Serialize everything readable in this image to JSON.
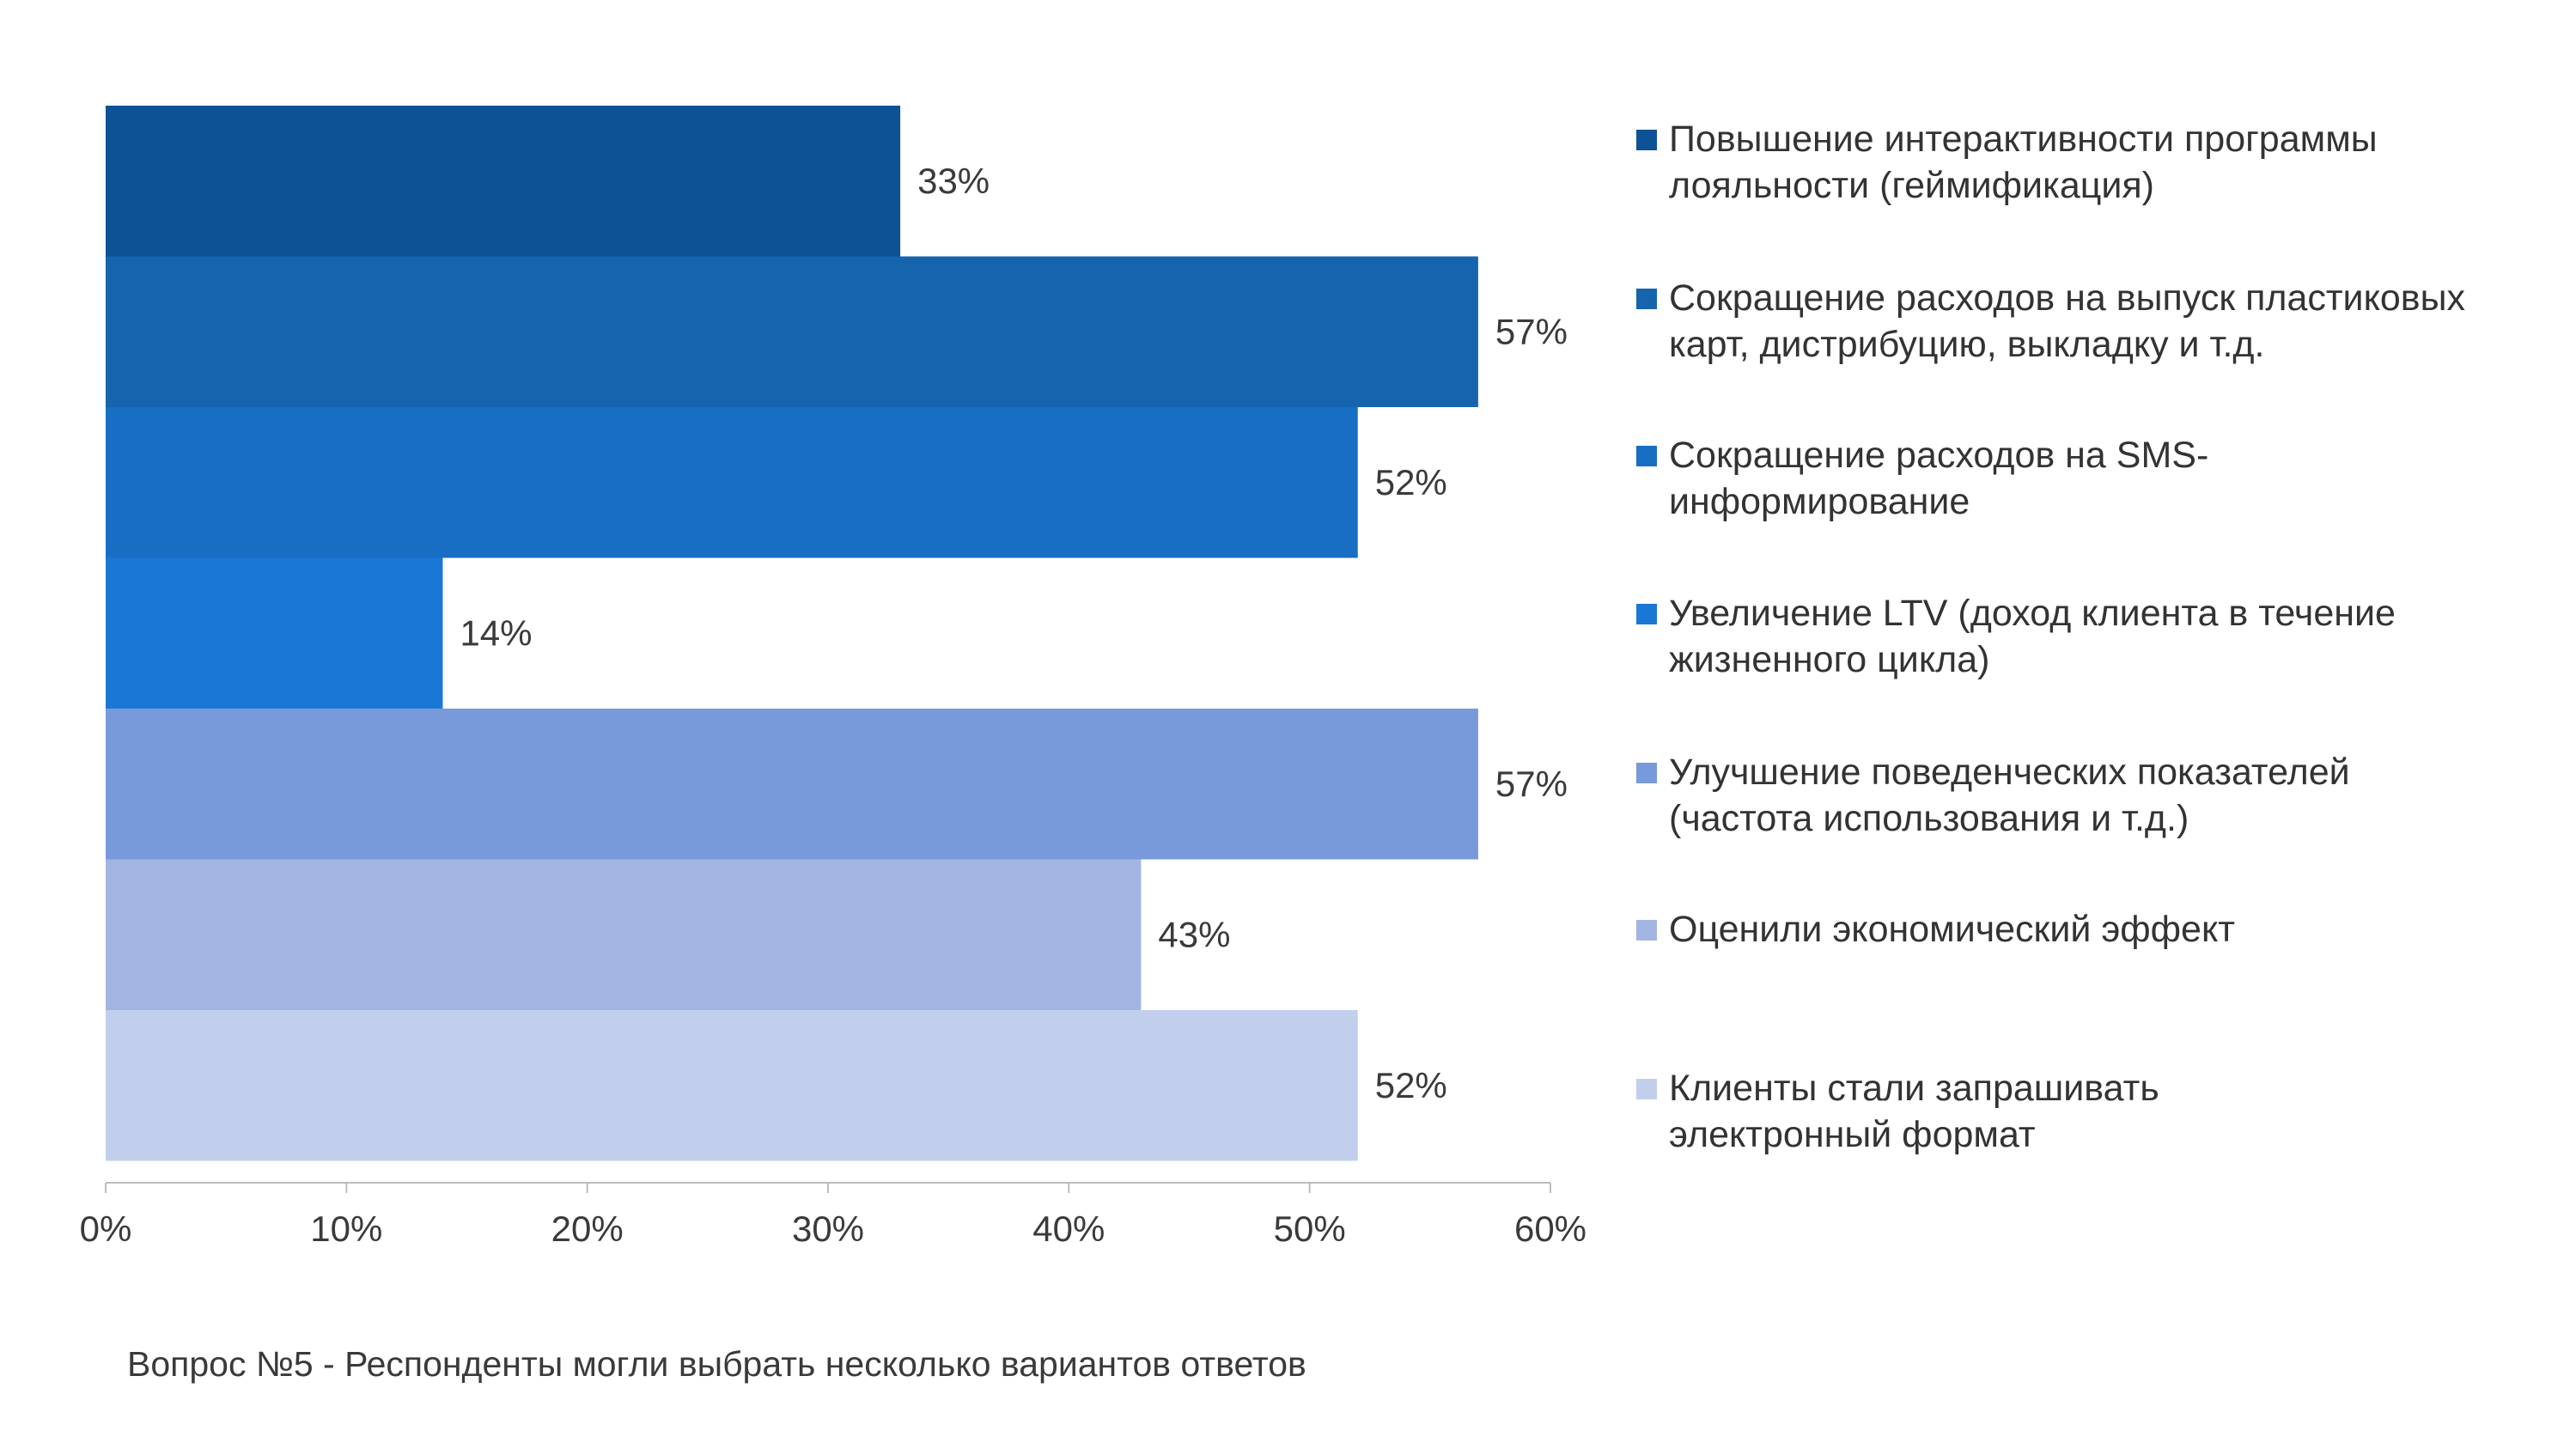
{
  "chart_data": {
    "type": "bar",
    "orientation": "horizontal",
    "categories": [
      "Повышение интерактивности программы\nлояльности (геймификация)",
      "Сокращение расходов на выпуск пластиковых\nкарт, дистрибуцию, выкладку и т.д.",
      "Сокращение расходов на SMS-\nинформирование",
      "Увеличение LTV (доход клиента в течение\nжизненного цикла)",
      "Улучшение поведенческих показателей\n(частота использования и т.д.)",
      "Оценили экономический эффект",
      "Клиенты стали запрашивать\nэлектронный формат"
    ],
    "values": [
      33,
      57,
      52,
      14,
      57,
      43,
      52
    ],
    "value_labels": [
      "33%",
      "57%",
      "52%",
      "14%",
      "57%",
      "43%",
      "52%"
    ],
    "colors": [
      "#0e5296",
      "#1564ad",
      "#186ec3",
      "#1b77d6",
      "#7899da",
      "#a2b5e2",
      "#c1cfec"
    ],
    "x_ticks": [
      "0%",
      "10%",
      "20%",
      "30%",
      "40%",
      "50%",
      "60%"
    ],
    "xlim": [
      0,
      60
    ],
    "grid": false,
    "legend_position": "right",
    "title": "",
    "xlabel": "",
    "ylabel": ""
  },
  "footnote": "Вопрос №5 - Респонденты могли выбрать несколько вариантов ответов"
}
